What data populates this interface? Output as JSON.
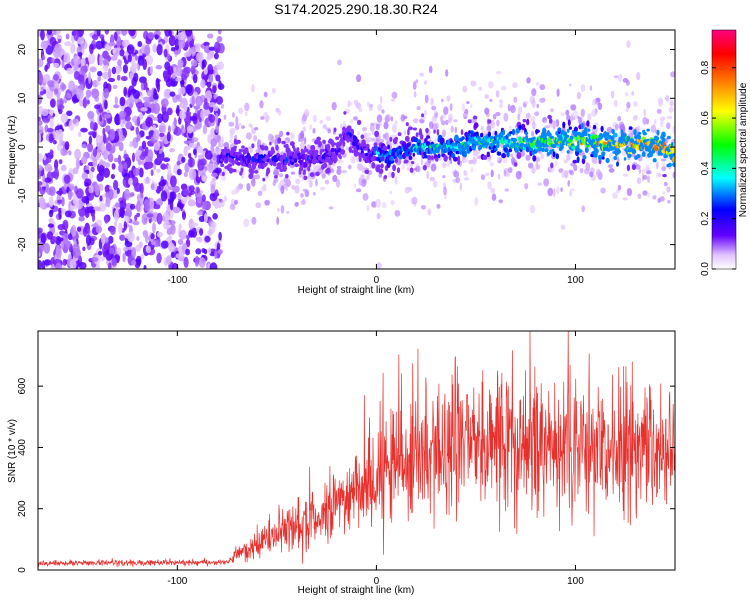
{
  "title": "S174.2025.290.18.30.R24",
  "chart_data": [
    {
      "type": "heatmap",
      "title": "S174.2025.290.18.30.R24",
      "xlabel": "Height of straight line (km)",
      "ylabel": "Frequency (Hz)",
      "xlim": [
        -170,
        150
      ],
      "ylim": [
        -25,
        24
      ],
      "x_ticks": [
        -100,
        0,
        100
      ],
      "y_ticks": [
        -20,
        -10,
        0,
        10,
        20
      ],
      "grid": false,
      "noise_region_x": [
        -170,
        -78
      ],
      "ridge": {
        "x": [
          -77,
          -65,
          -50,
          -35,
          -25,
          -18,
          -15,
          -12,
          -8,
          -4,
          0,
          5,
          10,
          20,
          30,
          40,
          50,
          60,
          70,
          80,
          90,
          100,
          110,
          120,
          130,
          140,
          150
        ],
        "freq": [
          -2,
          -2.5,
          -2.5,
          -2.5,
          -2,
          0,
          3,
          2,
          0,
          -2,
          -1,
          -2,
          -1,
          0,
          0,
          0,
          1,
          1,
          1,
          1,
          1,
          1,
          1,
          0.5,
          0.5,
          0.5,
          -1
        ]
      },
      "colorbar": {
        "label": "Normalized spectral amplitude",
        "range": [
          0,
          0.95
        ],
        "ticks": [
          0.0,
          0.2,
          0.4,
          0.6,
          0.8
        ],
        "colormap": [
          "#ffffff",
          "#6400ff",
          "#0000ff",
          "#00ffff",
          "#00ff00",
          "#ffff00",
          "#ff8000",
          "#ff0000",
          "#ff0080"
        ]
      }
    },
    {
      "type": "line",
      "xlabel": "Height of straight line (km)",
      "ylabel": "SNR (10 * v/v)",
      "xlim": [
        -170,
        150
      ],
      "ylim": [
        0,
        780
      ],
      "x_ticks": [
        -100,
        0,
        100
      ],
      "y_ticks": [
        0,
        200,
        400,
        600
      ],
      "grid": false,
      "color": "#e8302d",
      "envelope": {
        "x": [
          -170,
          -80,
          -75,
          -70,
          -60,
          -50,
          -40,
          -30,
          -20,
          -10,
          0,
          10,
          20,
          30,
          40,
          60,
          80,
          100,
          110,
          120,
          130,
          150
        ],
        "mean": [
          22,
          25,
          28,
          45,
          85,
          125,
          150,
          170,
          210,
          265,
          300,
          340,
          370,
          395,
          410,
          415,
          415,
          410,
          400,
          395,
          395,
          395
        ]
      }
    }
  ]
}
